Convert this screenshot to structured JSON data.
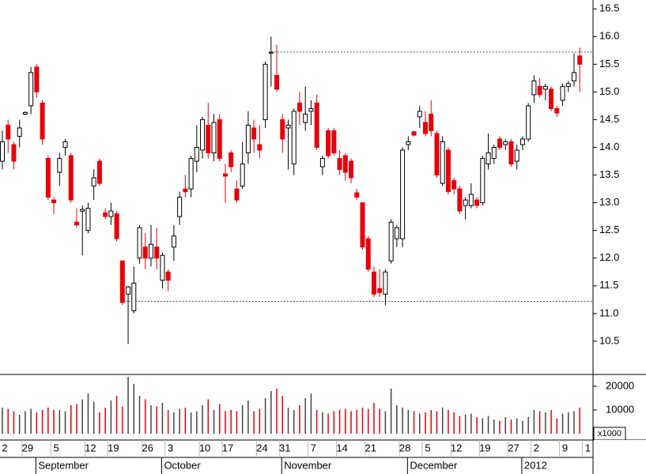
{
  "chart_data": {
    "type": "candlestick",
    "categories": [
      "2",
      null,
      null,
      null,
      "29",
      null,
      null,
      null,
      null,
      "5",
      null,
      null,
      null,
      null,
      null,
      "12",
      null,
      null,
      null,
      "19",
      null,
      null,
      null,
      null,
      null,
      "26",
      null,
      null,
      null,
      "3",
      null,
      null,
      null,
      null,
      null,
      "10",
      null,
      null,
      null,
      "17",
      null,
      null,
      null,
      null,
      null,
      "24",
      null,
      null,
      null,
      "31",
      null,
      null,
      null,
      null,
      "7",
      null,
      null,
      null,
      null,
      "14",
      null,
      null,
      null,
      null,
      "21",
      null,
      null,
      null,
      null,
      null,
      "28",
      null,
      null,
      null,
      "5",
      null,
      null,
      null,
      null,
      "12",
      null,
      null,
      null,
      null,
      "19",
      null,
      null,
      null,
      null,
      "27",
      null,
      null,
      null,
      "2",
      null,
      null,
      null,
      null,
      "9",
      null,
      null,
      null,
      "1"
    ],
    "month_categories": [
      null,
      null,
      null,
      null,
      null,
      null,
      "September",
      null,
      null,
      null,
      null,
      null,
      null,
      null,
      null,
      null,
      null,
      null,
      null,
      null,
      null,
      null,
      null,
      null,
      null,
      null,
      null,
      null,
      "October",
      null,
      null,
      null,
      null,
      null,
      null,
      null,
      null,
      null,
      null,
      null,
      null,
      null,
      null,
      null,
      null,
      null,
      null,
      null,
      null,
      "November",
      null,
      null,
      null,
      null,
      null,
      null,
      null,
      null,
      null,
      null,
      null,
      null,
      null,
      null,
      null,
      null,
      null,
      null,
      null,
      null,
      null,
      "December",
      null,
      null,
      null,
      null,
      null,
      null,
      null,
      null,
      null,
      null,
      null,
      null,
      null,
      null,
      null,
      null,
      null,
      null,
      null,
      "2012",
      null,
      null,
      null,
      null,
      null,
      null,
      null,
      null,
      null,
      null
    ],
    "open": [
      13.75,
      14.4,
      14.05,
      14.2,
      14.6,
      14.75,
      15.45,
      14.8,
      13.8,
      13.05,
      13.55,
      14.0,
      13.85,
      12.65,
      12.85,
      12.5,
      13.3,
      13.75,
      12.82,
      12.75,
      12.8,
      11.95,
      11.35,
      11.05,
      12.0,
      12.2,
      12.0,
      12.2,
      11.6,
      11.75,
      12.2,
      12.75,
      13.25,
      13.25,
      13.75,
      13.95,
      14.4,
      13.9,
      14.5,
      13.52,
      13.9,
      13.25,
      13.3,
      13.9,
      14.35,
      14.05,
      14.5,
      15.7,
      15.3,
      14.5,
      14.35,
      13.7,
      14.8,
      14.45,
      14.65,
      14.8,
      13.65,
      14.3,
      14.3,
      13.8,
      13.85,
      13.75,
      13.18,
      13.0,
      12.35,
      11.75,
      11.45,
      11.35,
      11.95,
      12.35,
      12.35,
      14.05,
      14.28,
      14.55,
      14.45,
      14.6,
      14.25,
      13.35,
      13.95,
      13.4,
      13.25,
      12.95,
      12.95,
      13.05,
      13.0,
      13.7,
      13.8,
      14.15,
      14.05,
      14.1,
      13.75,
      14.05,
      14.15,
      14.95,
      15.1,
      15.05,
      15.05,
      14.7,
      14.85,
      15.1,
      15.2,
      15.65,
      null
    ],
    "high": [
      14.3,
      14.5,
      14.1,
      14.5,
      14.65,
      15.45,
      15.5,
      14.85,
      13.85,
      13.1,
      13.9,
      14.15,
      13.9,
      12.9,
      12.95,
      13.0,
      13.6,
      13.8,
      12.9,
      13.0,
      12.85,
      11.95,
      11.5,
      11.85,
      12.6,
      12.45,
      12.6,
      12.55,
      12.1,
      11.8,
      12.6,
      13.2,
      13.5,
      13.85,
      14.4,
      14.55,
      14.8,
      14.6,
      14.6,
      13.7,
      13.95,
      13.4,
      14.1,
      14.65,
      14.5,
      14.4,
      15.55,
      16.0,
      15.85,
      14.6,
      14.5,
      14.7,
      15.0,
      15.1,
      14.85,
      14.95,
      13.85,
      14.35,
      14.35,
      13.95,
      13.9,
      13.8,
      13.25,
      13.0,
      12.4,
      11.85,
      11.8,
      11.8,
      12.7,
      12.6,
      14.0,
      14.2,
      14.3,
      14.75,
      14.65,
      14.85,
      14.3,
      14.2,
      14.0,
      13.45,
      13.3,
      13.1,
      13.35,
      13.1,
      13.85,
      14.25,
      14.05,
      14.2,
      14.15,
      14.15,
      14.05,
      14.2,
      14.8,
      15.3,
      15.25,
      15.15,
      15.1,
      14.75,
      15.15,
      15.2,
      15.7,
      15.8,
      null
    ],
    "low": [
      13.6,
      13.9,
      13.6,
      14.0,
      14.58,
      14.6,
      14.9,
      14.05,
      13.05,
      12.8,
      13.3,
      13.85,
      13.0,
      12.55,
      12.05,
      12.45,
      13.05,
      13.3,
      12.7,
      12.6,
      12.3,
      11.15,
      10.45,
      11.0,
      11.9,
      11.8,
      11.85,
      11.8,
      11.45,
      11.4,
      11.95,
      12.6,
      13.1,
      13.1,
      13.55,
      13.8,
      13.8,
      13.75,
      13.75,
      13.0,
      13.55,
      13.0,
      13.25,
      13.7,
      13.9,
      13.8,
      14.35,
      15.1,
      15.0,
      13.9,
      13.6,
      13.5,
      14.4,
      14.3,
      14.4,
      13.95,
      13.5,
      13.8,
      13.85,
      13.5,
      13.4,
      13.35,
      13.05,
      12.15,
      11.75,
      11.3,
      11.3,
      11.15,
      11.9,
      12.2,
      12.2,
      13.95,
      14.2,
      14.35,
      14.2,
      14.2,
      13.45,
      13.3,
      13.15,
      13.15,
      12.8,
      12.7,
      12.9,
      12.9,
      12.95,
      13.6,
      13.7,
      13.95,
      13.95,
      13.65,
      13.6,
      13.95,
      14.1,
      14.8,
      14.9,
      14.85,
      14.65,
      14.55,
      14.75,
      15.0,
      15.1,
      15.0,
      null
    ],
    "close": [
      14.1,
      14.15,
      13.75,
      14.35,
      14.63,
      15.35,
      15.0,
      14.15,
      13.1,
      13.0,
      13.8,
      14.1,
      13.05,
      12.6,
      12.88,
      12.9,
      13.45,
      13.35,
      12.75,
      12.85,
      12.35,
      11.2,
      11.48,
      11.55,
      12.55,
      12.0,
      12.25,
      12.0,
      12.05,
      11.6,
      12.4,
      13.1,
      13.2,
      13.8,
      14.0,
      14.5,
      13.9,
      14.45,
      13.8,
      13.48,
      13.65,
      13.05,
      13.7,
      14.4,
      14.15,
      13.95,
      15.5,
      15.72,
      15.05,
      14.15,
      14.4,
      14.65,
      14.65,
      14.6,
      14.7,
      14.0,
      13.8,
      13.85,
      13.9,
      13.6,
      13.55,
      13.45,
      13.1,
      12.2,
      11.8,
      11.35,
      11.38,
      11.75,
      12.65,
      12.55,
      13.95,
      14.1,
      14.22,
      14.65,
      14.25,
      14.3,
      13.5,
      14.1,
      13.2,
      13.25,
      12.85,
      13.05,
      13.15,
      12.95,
      13.8,
      13.9,
      14.0,
      14.0,
      14.1,
      13.7,
      13.95,
      14.15,
      14.75,
      15.2,
      14.95,
      15.1,
      14.7,
      14.62,
      15.1,
      15.15,
      15.35,
      15.5,
      null
    ],
    "volume": [
      11000,
      10500,
      9500,
      8000,
      9500,
      10500,
      9000,
      10000,
      11000,
      10000,
      10000,
      9500,
      12000,
      12500,
      14500,
      17000,
      13500,
      9000,
      11000,
      14000,
      16000,
      11500,
      24000,
      21000,
      16000,
      14500,
      12000,
      11500,
      13000,
      10000,
      9000,
      10500,
      11000,
      9000,
      9500,
      12000,
      14500,
      10000,
      12500,
      9500,
      10000,
      9500,
      12000,
      14000,
      9500,
      10500,
      15000,
      18000,
      19000,
      16000,
      11000,
      10000,
      12000,
      15000,
      17000,
      10000,
      9000,
      8500,
      9500,
      10000,
      10500,
      9500,
      10000,
      11000,
      10500,
      13000,
      10500,
      9500,
      19000,
      12000,
      11000,
      10000,
      9500,
      8500,
      9000,
      10000,
      9500,
      11000,
      10000,
      9000,
      7500,
      8000,
      8500,
      7000,
      6500,
      7500,
      6000,
      5500,
      7000,
      6000,
      6500,
      5500,
      7000,
      10000,
      9500,
      9000,
      10000,
      6500,
      8500,
      9000,
      9500,
      11000,
      null
    ],
    "ylim": [
      9.9,
      16.66
    ],
    "yticks": [
      10.5,
      {
        "value": 11,
        "label": "11.0"
      },
      11.5,
      {
        "value": 12,
        "label": "12.0"
      },
      12.5,
      {
        "value": 13,
        "label": "13.0"
      },
      13.5,
      {
        "value": 14,
        "label": "14.0"
      },
      14.5,
      {
        "value": 15,
        "label": "15.0"
      },
      15.5,
      {
        "value": 16,
        "label": "16.0"
      },
      16.5
    ],
    "volume_ylim": [
      0,
      25000
    ],
    "volume_yticks": [
      10000,
      20000
    ],
    "volume_unit": "x1000",
    "reference_lines": [
      15.72,
      11.22
    ],
    "up_color": "#ffffff",
    "down_color": "#e8000b",
    "volume_up_color": "#444444",
    "volume_down_color": "#e8000b"
  }
}
